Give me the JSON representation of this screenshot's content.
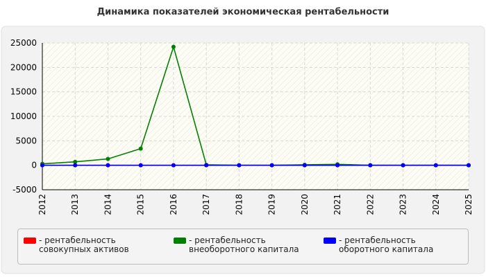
{
  "chart_data": {
    "type": "line",
    "title": "Динамика показателей экономическая рентабельности",
    "x": [
      2012,
      2013,
      2014,
      2015,
      2016,
      2017,
      2018,
      2019,
      2020,
      2021,
      2022,
      2023,
      2024,
      2025
    ],
    "xlim": [
      2012,
      2025
    ],
    "xticks": [
      2012,
      2013,
      2014,
      2015,
      2016,
      2017,
      2018,
      2019,
      2020,
      2021,
      2022,
      2023,
      2024,
      2025
    ],
    "ylim": [
      -5000,
      25000
    ],
    "yticks": [
      -5000,
      0,
      5000,
      10000,
      15000,
      20000,
      25000
    ],
    "grid": true,
    "legend": "bottom",
    "series": [
      {
        "name": "- рентабельность совокупных активов",
        "color": "#ff0000",
        "values": [
          0,
          0,
          0,
          0,
          0,
          0,
          0,
          0,
          0,
          0,
          0,
          0,
          0,
          0
        ]
      },
      {
        "name": "- рентабельность внеоборотного капитала",
        "color": "#008000",
        "values": [
          300,
          700,
          1300,
          3400,
          24200,
          100,
          0,
          0,
          100,
          200,
          0,
          0,
          0,
          0
        ]
      },
      {
        "name": "- рентабельность оборотного капитала",
        "color": "#0000ff",
        "values": [
          0,
          0,
          0,
          0,
          0,
          0,
          0,
          0,
          0,
          0,
          0,
          0,
          0,
          0
        ]
      }
    ]
  }
}
